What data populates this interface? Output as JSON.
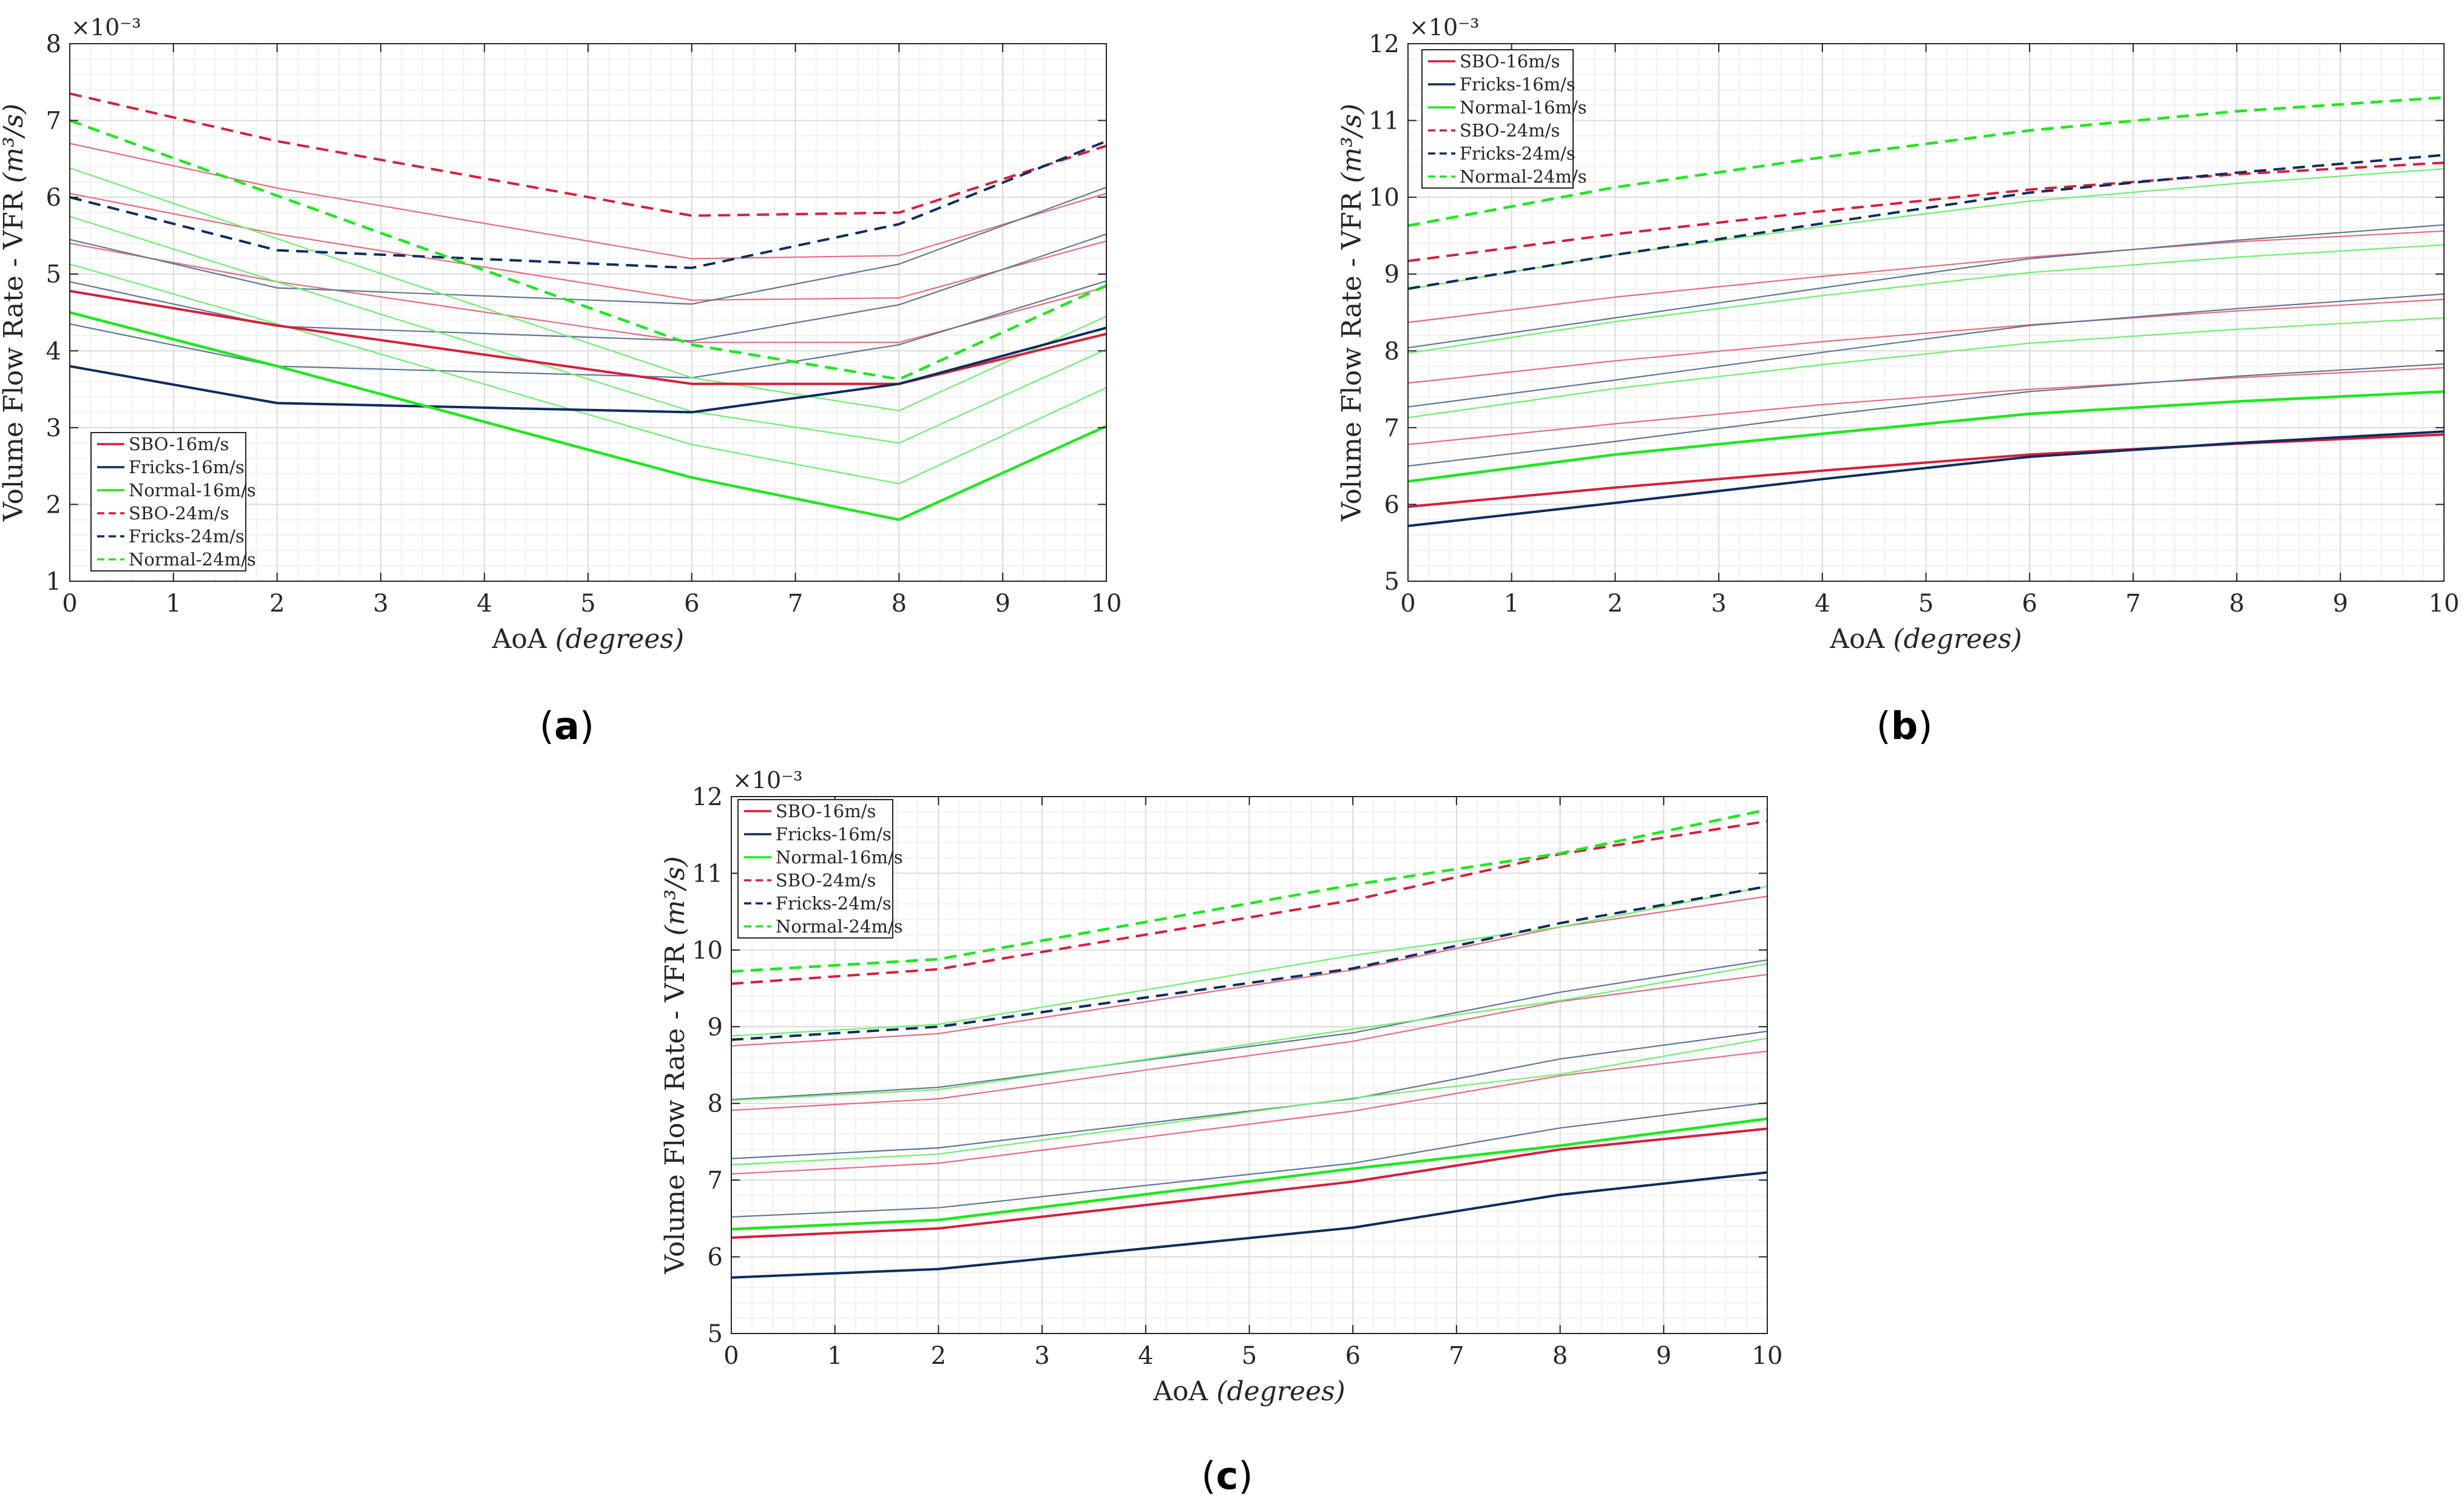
{
  "colors": {
    "SBO": "#d51f3c",
    "Fricks": "#0c2d5e",
    "Normal": "#1ee81e",
    "grid_major": "#dcdcdc",
    "grid_minor": "#f1f1f1",
    "axis": "#262626"
  },
  "chart_data": [
    {
      "type": "line",
      "panel_label": "a",
      "xlabel": "AoA",
      "xlabel_unit": "(degrees)",
      "ylabel": "Volume Flow Rate - VFR",
      "ylabel_unit": "(m³/s)",
      "y_multiplier": "×10⁻³",
      "xlim": [
        0,
        10
      ],
      "ylim": [
        1,
        8
      ],
      "xticks": [
        "0",
        "1",
        "2",
        "3",
        "4",
        "5",
        "6",
        "7",
        "8",
        "9",
        "10"
      ],
      "yticks": [
        "1",
        "2",
        "3",
        "4",
        "5",
        "6",
        "7",
        "8"
      ],
      "grid": true,
      "legend_position": "bottom-left",
      "x": [
        0,
        2,
        6,
        8,
        10
      ],
      "series": [
        {
          "name": "SBO-16m/s",
          "group": "SBO",
          "style": "solid",
          "width": 4,
          "values": [
            4.78,
            4.33,
            3.57,
            3.57,
            4.22
          ]
        },
        {
          "name": "Fricks-16m/s",
          "group": "Fricks",
          "style": "solid",
          "width": 4,
          "values": [
            3.8,
            3.32,
            3.2,
            3.57,
            4.3
          ]
        },
        {
          "name": "Normal-16m/s",
          "group": "Normal",
          "style": "solid",
          "width": 4.5,
          "values": [
            4.5,
            3.8,
            2.35,
            1.8,
            3.02
          ]
        },
        {
          "name": "SBO-24m/s",
          "group": "SBO",
          "style": "dashed",
          "width": 4,
          "values": [
            7.35,
            6.73,
            5.76,
            5.8,
            6.67
          ]
        },
        {
          "name": "Fricks-24m/s",
          "group": "Fricks",
          "style": "dashed",
          "width": 4,
          "values": [
            6.0,
            5.31,
            5.08,
            5.65,
            6.73
          ]
        },
        {
          "name": "Normal-24m/s",
          "group": "Normal",
          "style": "dashed",
          "width": 4.5,
          "values": [
            7.0,
            6.02,
            4.08,
            3.63,
            4.85
          ]
        }
      ],
      "intermediate_series": [
        {
          "group": "SBO",
          "values": [
            5.4,
            4.9,
            4.11,
            4.11,
            4.83
          ]
        },
        {
          "group": "SBO",
          "values": [
            6.05,
            5.52,
            4.66,
            4.69,
            5.43
          ]
        },
        {
          "group": "SBO",
          "values": [
            6.7,
            6.12,
            5.2,
            5.24,
            6.05
          ]
        },
        {
          "group": "Fricks",
          "values": [
            4.35,
            3.8,
            3.65,
            4.08,
            4.91
          ]
        },
        {
          "group": "Fricks",
          "values": [
            4.9,
            4.32,
            4.13,
            4.6,
            5.52
          ]
        },
        {
          "group": "Fricks",
          "values": [
            5.45,
            4.82,
            4.61,
            5.13,
            6.13
          ]
        },
        {
          "group": "Normal",
          "values": [
            5.13,
            4.35,
            2.78,
            2.27,
            3.52
          ]
        },
        {
          "group": "Normal",
          "values": [
            5.75,
            4.9,
            3.21,
            2.8,
            4.02
          ]
        },
        {
          "group": "Normal",
          "values": [
            6.38,
            5.46,
            3.65,
            3.22,
            4.45
          ]
        }
      ]
    },
    {
      "type": "line",
      "panel_label": "b",
      "xlabel": "AoA",
      "xlabel_unit": "(degrees)",
      "ylabel": "Volume Flow Rate - VFR",
      "ylabel_unit": "(m³/s)",
      "y_multiplier": "×10⁻³",
      "xlim": [
        0,
        10
      ],
      "ylim": [
        5,
        12
      ],
      "xticks": [
        "0",
        "1",
        "2",
        "3",
        "4",
        "5",
        "6",
        "7",
        "8",
        "9",
        "10"
      ],
      "yticks": [
        "5",
        "6",
        "7",
        "8",
        "9",
        "10",
        "11",
        "12"
      ],
      "grid": true,
      "legend_position": "top-left",
      "x": [
        0,
        2,
        4,
        6,
        8,
        10
      ],
      "series": [
        {
          "name": "SBO-16m/s",
          "group": "SBO",
          "style": "solid",
          "width": 4,
          "values": [
            5.97,
            6.22,
            6.44,
            6.65,
            6.79,
            6.91
          ]
        },
        {
          "name": "Fricks-16m/s",
          "group": "Fricks",
          "style": "solid",
          "width": 4,
          "values": [
            5.72,
            6.02,
            6.33,
            6.62,
            6.8,
            6.95
          ]
        },
        {
          "name": "Normal-16m/s",
          "group": "Normal",
          "style": "solid",
          "width": 4.5,
          "values": [
            6.3,
            6.65,
            6.92,
            7.18,
            7.34,
            7.47
          ]
        },
        {
          "name": "SBO-24m/s",
          "group": "SBO",
          "style": "dashed",
          "width": 4,
          "values": [
            9.17,
            9.52,
            9.82,
            10.1,
            10.3,
            10.45
          ]
        },
        {
          "name": "Fricks-24m/s",
          "group": "Fricks",
          "style": "dashed",
          "width": 4,
          "values": [
            8.81,
            9.25,
            9.66,
            10.06,
            10.32,
            10.55
          ]
        },
        {
          "name": "Normal-24m/s",
          "group": "Normal",
          "style": "dashed",
          "width": 4.5,
          "values": [
            9.63,
            10.13,
            10.52,
            10.87,
            11.12,
            11.3
          ]
        }
      ],
      "intermediate_series": [
        {
          "group": "SBO",
          "values": [
            6.78,
            7.05,
            7.3,
            7.5,
            7.65,
            7.78
          ]
        },
        {
          "group": "SBO",
          "values": [
            7.58,
            7.87,
            8.12,
            8.34,
            8.52,
            8.67
          ]
        },
        {
          "group": "SBO",
          "values": [
            8.37,
            8.7,
            8.97,
            9.22,
            9.42,
            9.56
          ]
        },
        {
          "group": "Fricks",
          "values": [
            6.5,
            6.82,
            7.16,
            7.47,
            7.67,
            7.83
          ]
        },
        {
          "group": "Fricks",
          "values": [
            7.27,
            7.62,
            7.98,
            8.33,
            8.55,
            8.74
          ]
        },
        {
          "group": "Fricks",
          "values": [
            8.04,
            8.43,
            8.82,
            9.2,
            9.44,
            9.64
          ]
        },
        {
          "group": "Normal",
          "values": [
            7.13,
            7.51,
            7.82,
            8.1,
            8.28,
            8.43
          ]
        },
        {
          "group": "Normal",
          "values": [
            7.97,
            8.38,
            8.72,
            9.02,
            9.22,
            9.38
          ]
        },
        {
          "group": "Normal",
          "values": [
            8.8,
            9.25,
            9.62,
            9.95,
            10.18,
            10.37
          ]
        }
      ]
    },
    {
      "type": "line",
      "panel_label": "c",
      "xlabel": "AoA",
      "xlabel_unit": "(degrees)",
      "ylabel": "Volume Flow Rate - VFR",
      "ylabel_unit": "(m³/s)",
      "y_multiplier": "×10⁻³",
      "xlim": [
        0,
        10
      ],
      "ylim": [
        5,
        12
      ],
      "xticks": [
        "0",
        "1",
        "2",
        "3",
        "4",
        "5",
        "6",
        "7",
        "8",
        "9",
        "10"
      ],
      "yticks": [
        "5",
        "6",
        "7",
        "8",
        "9",
        "10",
        "11",
        "12"
      ],
      "grid": true,
      "legend_position": "top-left",
      "x": [
        0,
        2,
        6,
        8,
        10
      ],
      "series": [
        {
          "name": "SBO-16m/s",
          "group": "SBO",
          "style": "solid",
          "width": 4,
          "values": [
            6.25,
            6.37,
            6.98,
            7.4,
            7.67
          ]
        },
        {
          "name": "Fricks-16m/s",
          "group": "Fricks",
          "style": "solid",
          "width": 4,
          "values": [
            5.73,
            5.84,
            6.38,
            6.81,
            7.1
          ]
        },
        {
          "name": "Normal-16m/s",
          "group": "Normal",
          "style": "solid",
          "width": 4.5,
          "values": [
            6.36,
            6.48,
            7.15,
            7.45,
            7.8
          ]
        },
        {
          "name": "SBO-24m/s",
          "group": "SBO",
          "style": "dashed",
          "width": 4,
          "values": [
            9.56,
            9.75,
            10.65,
            11.25,
            11.68
          ]
        },
        {
          "name": "Fricks-24m/s",
          "group": "Fricks",
          "style": "dashed",
          "width": 4,
          "values": [
            8.83,
            9.0,
            9.76,
            10.35,
            10.83
          ]
        },
        {
          "name": "Normal-24m/s",
          "group": "Normal",
          "style": "dashed",
          "width": 4.5,
          "values": [
            9.72,
            9.88,
            10.85,
            11.26,
            11.83
          ]
        }
      ],
      "intermediate_series": [
        {
          "group": "SBO",
          "values": [
            7.08,
            7.22,
            7.9,
            8.36,
            8.68
          ]
        },
        {
          "group": "SBO",
          "values": [
            7.91,
            8.06,
            8.81,
            9.33,
            9.68
          ]
        },
        {
          "group": "SBO",
          "values": [
            8.75,
            8.91,
            9.74,
            10.3,
            10.7
          ]
        },
        {
          "group": "Fricks",
          "values": [
            6.52,
            6.64,
            7.22,
            7.68,
            8.01
          ]
        },
        {
          "group": "Fricks",
          "values": [
            7.28,
            7.42,
            8.06,
            8.58,
            8.94
          ]
        },
        {
          "group": "Fricks",
          "values": [
            8.05,
            8.21,
            8.92,
            9.45,
            9.87
          ]
        },
        {
          "group": "Normal",
          "values": [
            7.2,
            7.34,
            8.07,
            8.38,
            8.85
          ]
        },
        {
          "group": "Normal",
          "values": [
            8.04,
            8.18,
            8.97,
            9.34,
            9.82
          ]
        },
        {
          "group": "Normal",
          "values": [
            8.88,
            9.03,
            9.93,
            10.3,
            10.83
          ]
        }
      ]
    }
  ]
}
